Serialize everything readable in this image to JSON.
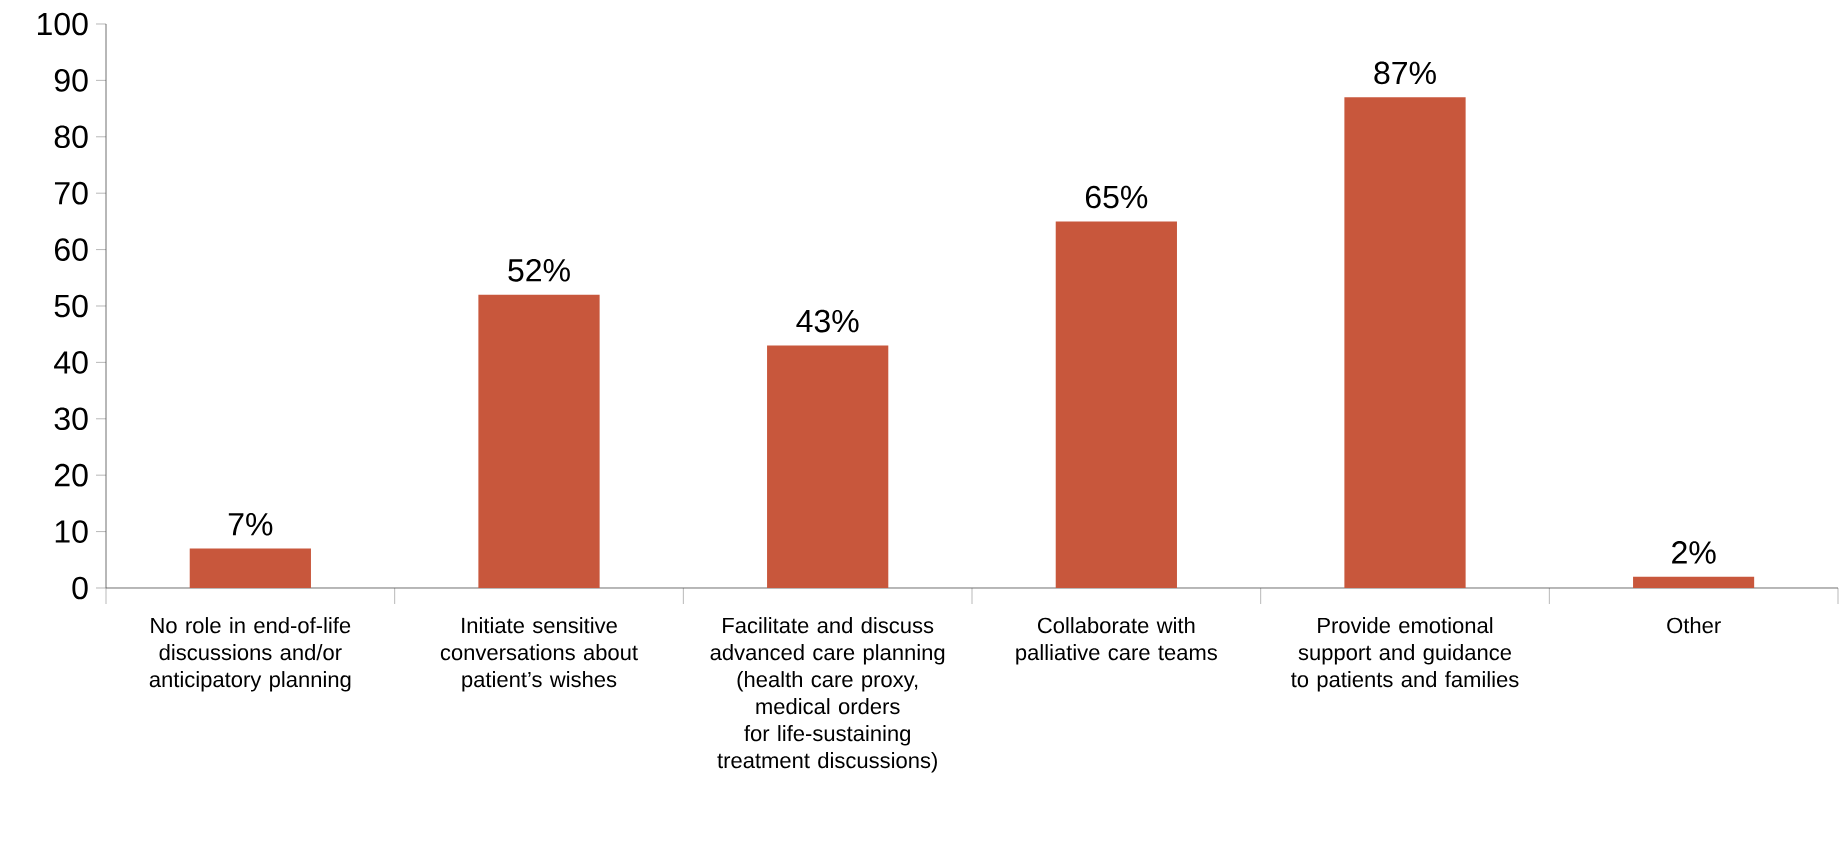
{
  "chart_data": {
    "type": "bar",
    "categories": [
      "No role in end-of-life discussions and/or anticipatory planning",
      "Initiate sensitive conversations about patient’s wishes",
      "Facilitate and discuss advanced care planning (health care proxy, medical orders for life-sustaining treatment discussions)",
      "Collaborate with palliative care teams",
      "Provide emotional support and guidance to patients and families",
      "Other"
    ],
    "values": [
      7,
      52,
      43,
      65,
      87,
      2
    ],
    "value_labels": [
      "7%",
      "52%",
      "43%",
      "65%",
      "87%",
      "2%"
    ],
    "color": "#c8573c",
    "ylim": [
      0,
      100
    ],
    "yticks": [
      0,
      10,
      20,
      30,
      40,
      50,
      60,
      70,
      80,
      90,
      100
    ]
  }
}
